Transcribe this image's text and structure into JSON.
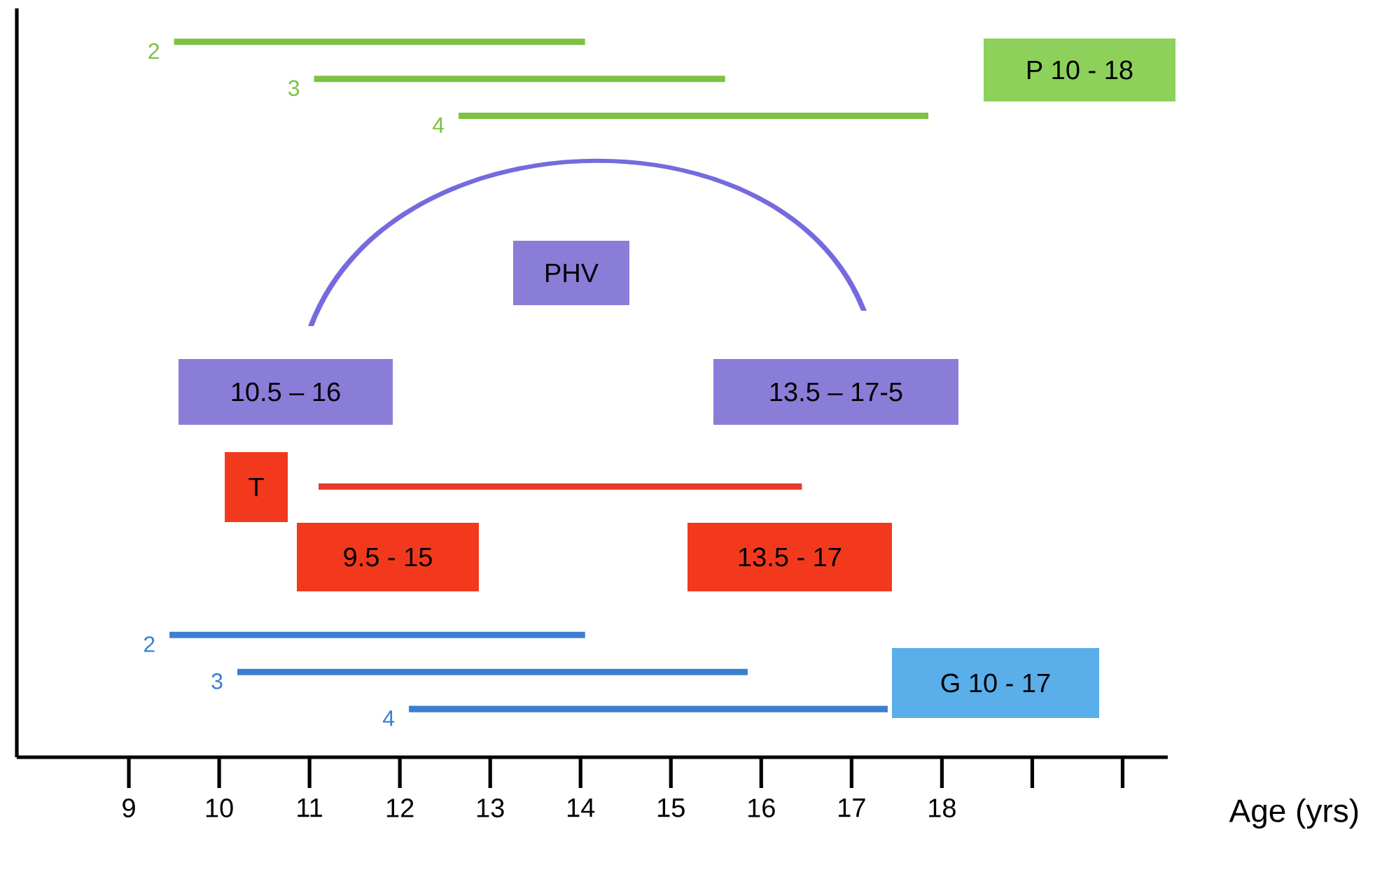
{
  "chart_data": {
    "type": "bar",
    "orientation": "horizontal",
    "categories": [
      "2",
      "3",
      "4",
      null,
      null,
      null,
      null,
      null,
      null,
      null,
      null,
      null,
      null,
      null,
      null,
      null,
      "2",
      "3",
      "4"
    ],
    "series": [
      {
        "color": "#7dc242",
        "values": [
          4.55,
          4.55,
          5.2,
          null,
          null,
          null,
          null,
          null,
          null,
          null,
          null,
          null,
          null,
          null,
          null,
          null,
          null,
          null,
          null
        ],
        "base": [
          9.5,
          11.05,
          12.65,
          null,
          null,
          null,
          null,
          null,
          null,
          null,
          null,
          null,
          null,
          null,
          null,
          null,
          null,
          null,
          null
        ]
      },
      {
        "color": "#e8392b",
        "values": [
          null,
          null,
          null,
          null,
          null,
          null,
          null,
          null,
          null,
          null,
          null,
          null,
          5.35,
          null,
          null,
          null,
          null,
          null,
          null
        ],
        "base": [
          null,
          null,
          null,
          null,
          null,
          null,
          null,
          null,
          null,
          null,
          null,
          null,
          11.1,
          null,
          null,
          null,
          null,
          null,
          null
        ]
      },
      {
        "color": "#3a7fd0",
        "values": [
          null,
          null,
          null,
          null,
          null,
          null,
          null,
          null,
          null,
          null,
          null,
          null,
          null,
          null,
          null,
          null,
          4.6,
          5.65,
          5.3
        ],
        "base": [
          null,
          null,
          null,
          null,
          null,
          null,
          null,
          null,
          null,
          null,
          null,
          null,
          null,
          null,
          null,
          null,
          9.45,
          10.2,
          12.1
        ]
      }
    ],
    "xlim": [
      7.76,
      20.5
    ],
    "xticks": [
      9,
      10,
      11,
      12,
      13,
      14,
      15,
      16,
      17,
      18
    ],
    "xlabel": "Age (yrs)",
    "annotations": [
      "P 10 - 18",
      "PHV",
      "10.5 – 16",
      "13.5 – 17-5",
      "T",
      "9.5 - 15",
      "13.5 - 17",
      "G 10 - 17"
    ]
  }
}
